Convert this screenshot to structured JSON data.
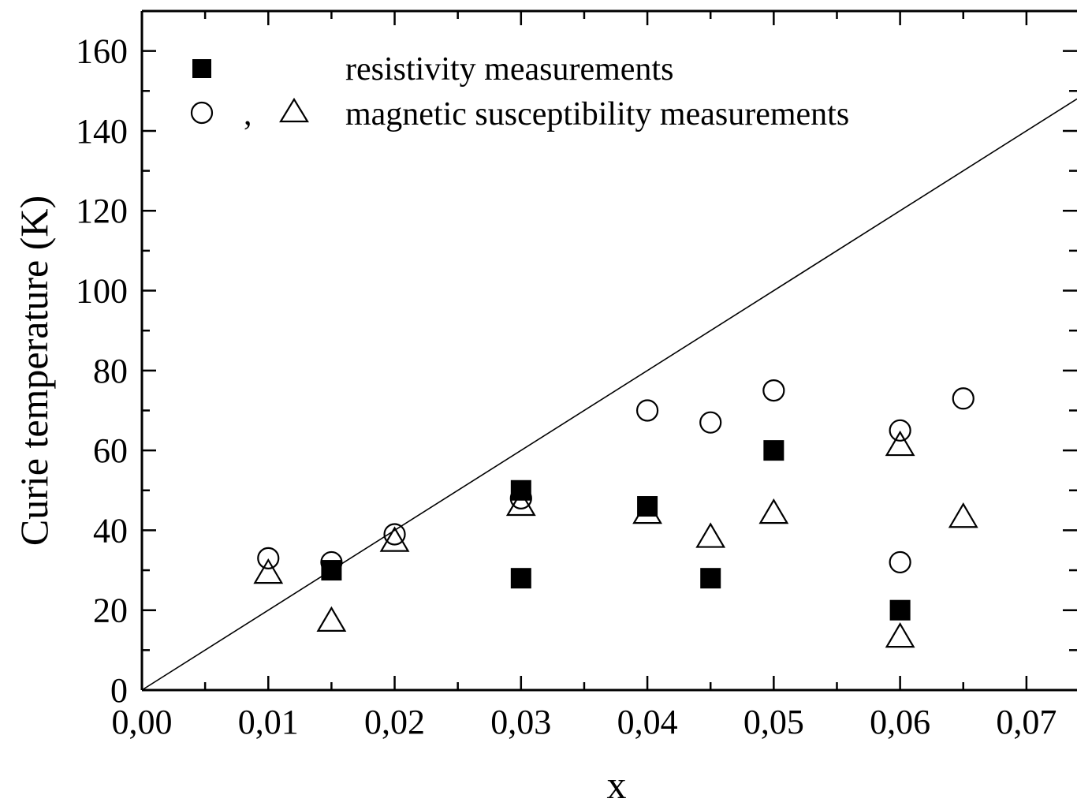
{
  "chart_data": {
    "type": "scatter",
    "xlabel": "x",
    "ylabel": "Curie temperature (K)",
    "xlim": [
      0.0,
      0.074
    ],
    "ylim": [
      0,
      170
    ],
    "x_ticks": [
      "0,00",
      "0,01",
      "0,02",
      "0,03",
      "0,04",
      "0,05",
      "0,06",
      "0,07"
    ],
    "y_ticks": [
      "0",
      "20",
      "40",
      "60",
      "80",
      "100",
      "120",
      "140",
      "160"
    ],
    "grid": false,
    "legend_position": "top-left",
    "legend": {
      "row1_label": "resistivity measurements",
      "row2_label": "magnetic susceptibility measurements",
      "row2_separator": ","
    },
    "series": [
      {
        "marker": "filled-square",
        "x": [
          0.015,
          0.03,
          0.03,
          0.04,
          0.045,
          0.05,
          0.06
        ],
        "y": [
          30,
          50,
          28,
          46,
          28,
          60,
          20
        ]
      },
      {
        "marker": "open-circle",
        "x": [
          0.01,
          0.015,
          0.02,
          0.03,
          0.04,
          0.045,
          0.05,
          0.06,
          0.06,
          0.065
        ],
        "y": [
          33,
          32,
          39,
          48,
          70,
          67,
          75,
          65,
          32,
          73
        ]
      },
      {
        "marker": "open-triangle",
        "x": [
          0.01,
          0.015,
          0.02,
          0.03,
          0.04,
          0.045,
          0.05,
          0.06,
          0.06,
          0.065
        ],
        "y": [
          29,
          17,
          37,
          46,
          44,
          38,
          44,
          61,
          13,
          43
        ]
      }
    ],
    "reference_line": {
      "x": [
        0.0,
        0.074
      ],
      "y": [
        0,
        148
      ]
    }
  }
}
